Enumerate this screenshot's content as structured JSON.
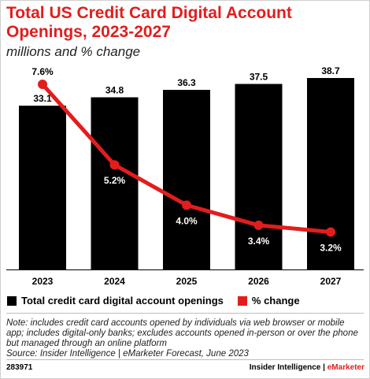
{
  "header": {
    "title": "Total US Credit Card Digital Account Openings, 2023-2027",
    "subtitle": "millions and % change"
  },
  "chart_data": {
    "type": "bar",
    "categories": [
      "2023",
      "2024",
      "2025",
      "2026",
      "2027"
    ],
    "series": [
      {
        "name": "Total credit card digital account openings",
        "kind": "bar",
        "values": [
          33.1,
          34.8,
          36.3,
          37.5,
          38.7
        ],
        "labels": [
          "33.1",
          "34.8",
          "36.3",
          "37.5",
          "38.7"
        ],
        "color": "#000000"
      },
      {
        "name": "% change",
        "kind": "line",
        "values": [
          7.6,
          5.2,
          4.0,
          3.4,
          3.2
        ],
        "labels": [
          "7.6%",
          "5.2%",
          "4.0%",
          "3.4%",
          "3.2%"
        ],
        "color": "#e21d1d"
      }
    ],
    "ylim_bars": [
      0,
      38.7
    ],
    "ylim_line": [
      2.6,
      7.6
    ],
    "grid": false,
    "legend_position": "bottom-left"
  },
  "legend": {
    "bars_label": "Total credit card digital account openings",
    "line_label": "% change",
    "bars_color": "#000000",
    "line_color": "#e21d1d"
  },
  "note": {
    "text": "Note: includes credit card accounts opened by individuals via web browser or mobile app; includes digital-only banks; excludes accounts opened in-person or over the phone but managed through an online platform",
    "source": "Source: Insider Intelligence | eMarketer Forecast, June 2023"
  },
  "footer": {
    "id": "283971",
    "brand": "Insider Intelligence |",
    "brand_accent": "eMarketer"
  }
}
